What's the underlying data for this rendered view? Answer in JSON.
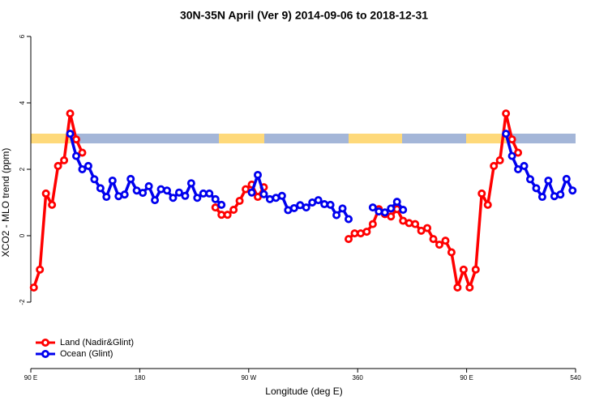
{
  "chart_data": {
    "type": "line",
    "title": "30N-35N April (Ver 9)   2014-09-06 to 2018-12-31",
    "x_label": "Longitude (deg E)",
    "y_label": "XCO2 - MLO trend (ppm)",
    "x": [
      92.5,
      97.5,
      102.5,
      107.5,
      112.5,
      117.5,
      122.5,
      127.5,
      132.5,
      137.5,
      142.5,
      147.5,
      152.5,
      157.5,
      162.5,
      167.5,
      172.5,
      177.5,
      182.5,
      187.5,
      192.5,
      197.5,
      202.5,
      207.5,
      212.5,
      217.5,
      222.5,
      227.5,
      232.5,
      237.5,
      242.5,
      247.5,
      252.5,
      257.5,
      262.5,
      267.5,
      272.5,
      277.5,
      282.5,
      287.5,
      292.5,
      297.5,
      302.5,
      307.5,
      312.5,
      317.5,
      322.5,
      327.5,
      332.5,
      337.5,
      342.5,
      347.5,
      352.5,
      357.5,
      362.5,
      367.5,
      372.5,
      377.5,
      382.5,
      387.5,
      392.5,
      397.5,
      402.5,
      407.5,
      412.5,
      417.5,
      422.5,
      427.5,
      432.5,
      437.5,
      442.5,
      447.5,
      452.5,
      457.5,
      462.5,
      467.5,
      472.5,
      477.5,
      482.5,
      487.5,
      492.5,
      497.5,
      502.5,
      507.5,
      512.5,
      517.5,
      522.5,
      527.5,
      532.5,
      537.5
    ],
    "series": [
      {
        "name": "Land (Nadir&Glint)",
        "color": "#ff0000",
        "values": [
          -1.56,
          -1.02,
          1.27,
          0.93,
          2.1,
          2.27,
          3.68,
          2.9,
          2.5,
          null,
          null,
          null,
          null,
          null,
          null,
          null,
          null,
          null,
          null,
          null,
          null,
          null,
          null,
          null,
          null,
          null,
          null,
          null,
          null,
          null,
          0.85,
          0.63,
          0.63,
          0.78,
          1.05,
          1.4,
          1.54,
          1.17,
          1.46,
          null,
          null,
          null,
          null,
          null,
          null,
          null,
          null,
          null,
          null,
          null,
          null,
          null,
          -0.1,
          0.07,
          0.07,
          0.12,
          0.35,
          0.8,
          0.65,
          0.58,
          0.8,
          0.45,
          0.38,
          0.35,
          0.15,
          0.23,
          -0.1,
          -0.27,
          -0.15,
          -0.5,
          -1.56,
          -1.02,
          -1.56,
          -1.02,
          1.27,
          0.93,
          2.1,
          2.27,
          3.68,
          2.9,
          2.5,
          null,
          null,
          null,
          null,
          null,
          null,
          null,
          null,
          null
        ]
      },
      {
        "name": "Ocean (Glint)",
        "color": "#0000ee",
        "values": [
          null,
          null,
          null,
          null,
          null,
          null,
          3.07,
          2.4,
          2.0,
          2.1,
          1.7,
          1.43,
          1.17,
          1.66,
          1.19,
          1.24,
          1.71,
          1.36,
          1.29,
          1.49,
          1.07,
          1.4,
          1.36,
          1.14,
          1.3,
          1.2,
          1.58,
          1.14,
          1.27,
          1.27,
          1.1,
          0.93,
          null,
          null,
          null,
          null,
          1.3,
          1.83,
          1.25,
          1.1,
          1.14,
          1.2,
          0.77,
          0.83,
          0.92,
          0.85,
          1.0,
          1.07,
          0.95,
          0.93,
          0.62,
          0.82,
          0.5,
          null,
          null,
          null,
          0.85,
          0.73,
          0.7,
          0.82,
          1.02,
          0.78,
          null,
          null,
          null,
          null,
          null,
          null,
          null,
          null,
          null,
          null,
          null,
          null,
          null,
          null,
          null,
          null,
          3.07,
          2.4,
          2.0,
          2.1,
          1.7,
          1.43,
          1.17,
          1.66,
          1.19,
          1.24,
          1.71,
          1.36
        ]
      }
    ],
    "xlim": [
      90,
      540
    ],
    "xticks": [
      {
        "value": 90,
        "label": "90 E"
      },
      180,
      {
        "value": 270,
        "label": "90 W"
      },
      360,
      {
        "value": 450,
        "label": "90 E"
      },
      540
    ],
    "ylim": [
      -4,
      6
    ],
    "yticks": [
      -2,
      0,
      2,
      4,
      6
    ],
    "legend": "bottom-left"
  }
}
